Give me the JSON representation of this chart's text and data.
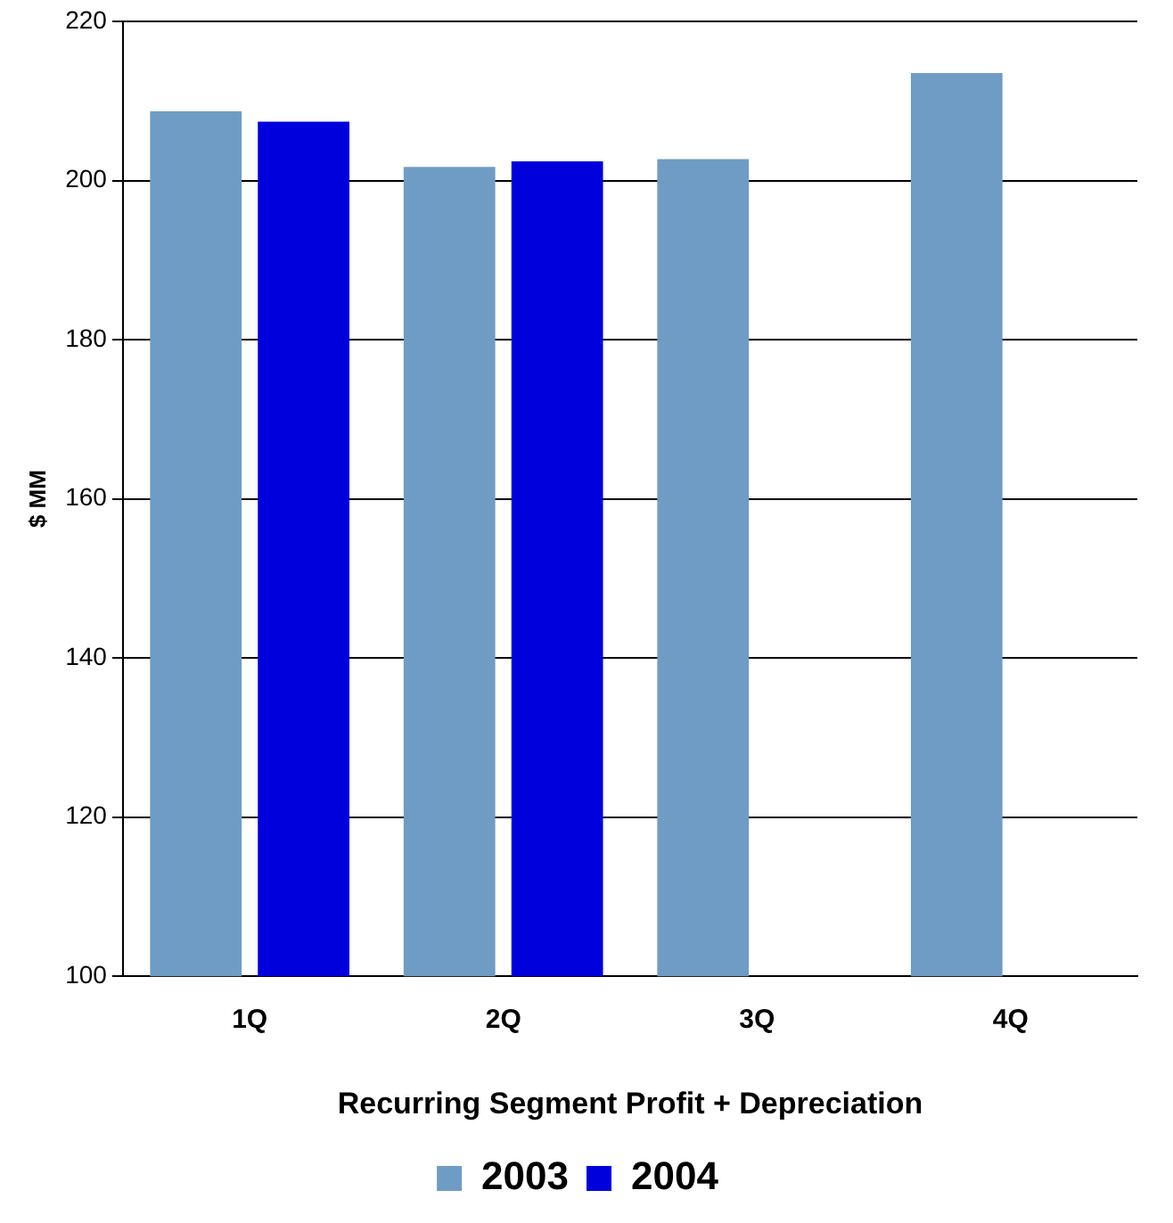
{
  "chart_data": {
    "type": "bar",
    "xlabel": "Recurring Segment Profit + Depreciation",
    "ylabel": "$ MM",
    "categories": [
      "1Q",
      "2Q",
      "3Q",
      "4Q"
    ],
    "series": [
      {
        "name": "2003",
        "color": "#6f9cc4",
        "values": [
          208.7,
          201.7,
          202.7,
          213.5
        ]
      },
      {
        "name": "2004",
        "color": "#0000dd",
        "values": [
          207.4,
          202.4,
          null,
          null
        ]
      }
    ],
    "ylim": [
      100,
      220
    ],
    "yticks": [
      100,
      120,
      140,
      160,
      180,
      200,
      220
    ],
    "grid": "y",
    "legend": "bottom"
  }
}
